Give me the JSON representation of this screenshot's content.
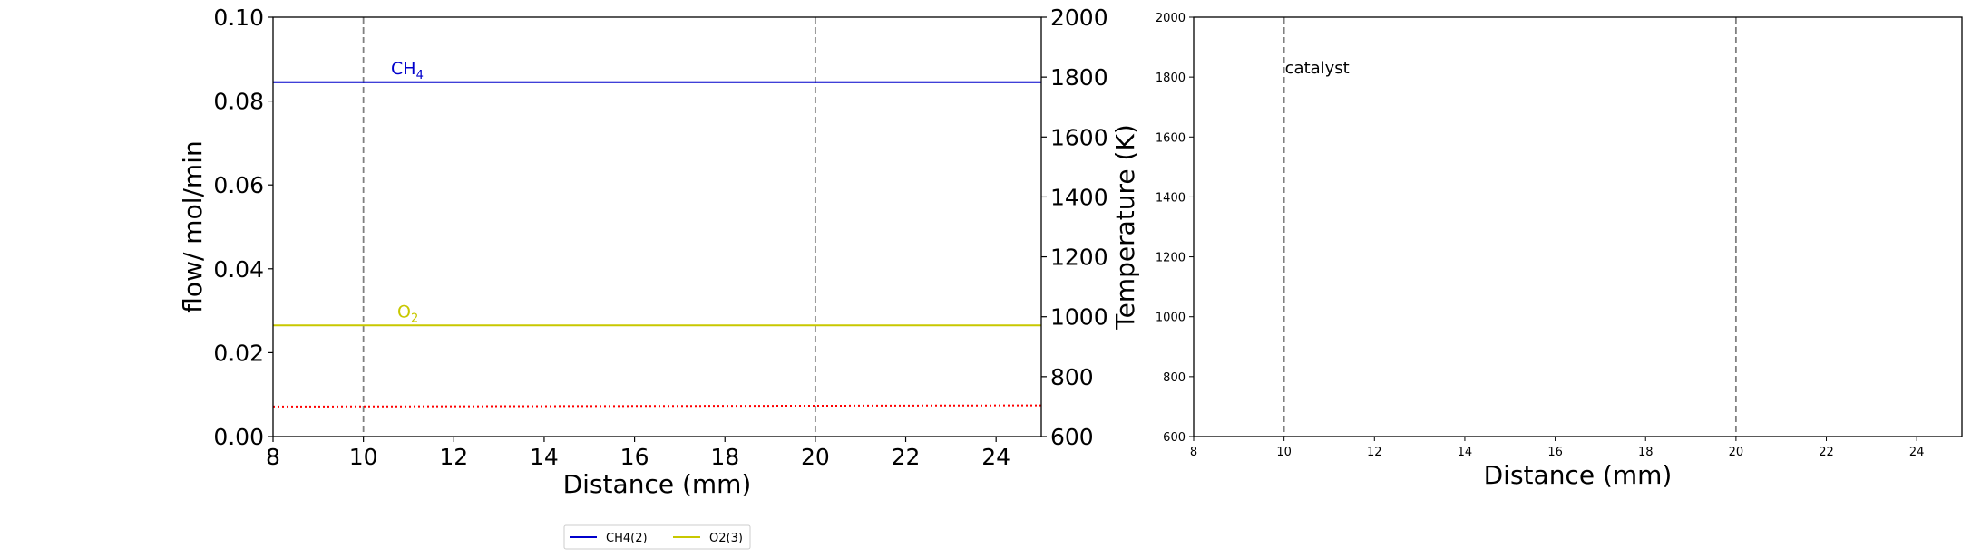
{
  "colors": {
    "ch4": "#0000cc",
    "o2": "#c8c800",
    "temperature": "#ff0000",
    "catalyst_line": "#808080"
  },
  "legend": {
    "entries": [
      "CH4(2)",
      "O2(3)"
    ],
    "placement": "bottom-center-below-left"
  },
  "chart_data": [
    {
      "type": "line",
      "xlabel": "Distance (mm)",
      "ylabel": "flow/ mol/min",
      "y2label": "Temperature (K)",
      "xlim": [
        8,
        25
      ],
      "ylim": [
        0,
        0.1
      ],
      "y2lim": [
        600,
        2000
      ],
      "xticks": [
        "8",
        "10",
        "12",
        "14",
        "16",
        "18",
        "20",
        "22",
        "24"
      ],
      "yticks": [
        "0.00",
        "0.02",
        "0.04",
        "0.06",
        "0.08",
        "0.10"
      ],
      "y2ticks": [
        "600",
        "800",
        "1000",
        "1200",
        "1400",
        "1600",
        "1800",
        "2000"
      ],
      "vlines": [
        10,
        20
      ],
      "grid": false,
      "series": [
        {
          "name": "CH4(2)",
          "label": "CH",
          "label_sub": "4",
          "x": [
            8,
            25
          ],
          "y": [
            0.0845,
            0.0845
          ],
          "axis": "left"
        },
        {
          "name": "O2(3)",
          "label": "O",
          "label_sub": "2",
          "x": [
            8,
            25
          ],
          "y": [
            0.0265,
            0.0265
          ],
          "axis": "left"
        },
        {
          "x": [
            8,
            25
          ],
          "y": [
            700,
            704
          ],
          "axis": "right",
          "style": "dotted"
        }
      ]
    },
    {
      "type": "line",
      "xlabel": "Distance (mm)",
      "xlim": [
        8,
        25
      ],
      "ylim": [
        600,
        2000
      ],
      "xticks": [
        "8",
        "10",
        "12",
        "14",
        "16",
        "18",
        "20",
        "22",
        "24"
      ],
      "yticks": [
        "600",
        "800",
        "1000",
        "1200",
        "1400",
        "1600",
        "1800",
        "2000"
      ],
      "vlines": [
        10,
        20
      ],
      "annotation": {
        "text": "catalyst",
        "x": 10,
        "y": 1830
      },
      "grid": false,
      "series": []
    }
  ]
}
